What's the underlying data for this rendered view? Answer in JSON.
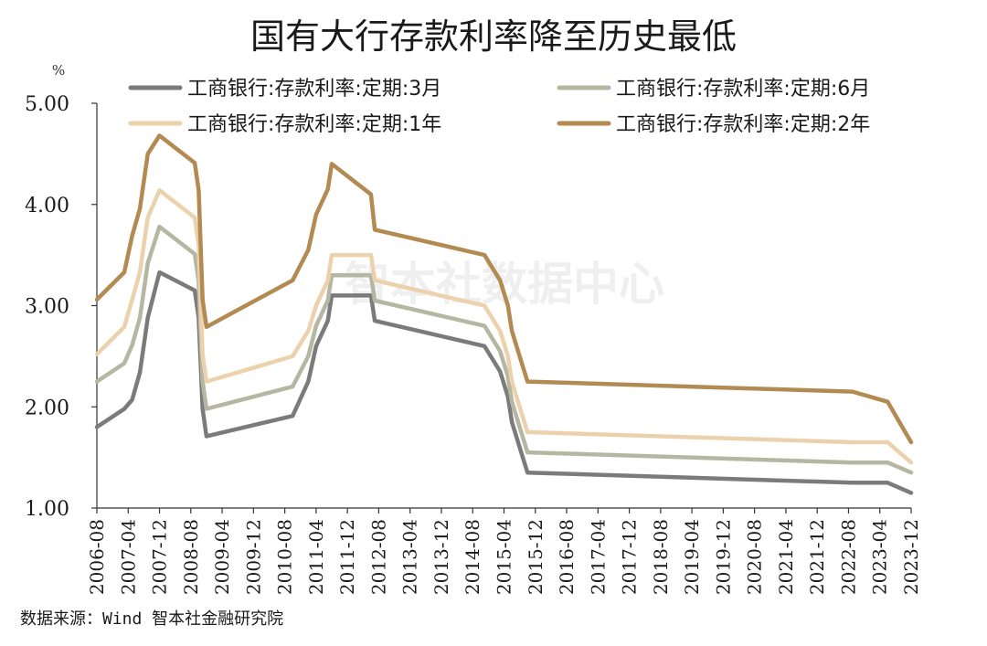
{
  "title": "国有大行存款利率降至历史最低",
  "unit_label": "%",
  "watermark": "智本社数据中心",
  "source": "数据来源：Wind 智本社金融研究院",
  "chart_data": {
    "type": "line",
    "title": "国有大行存款利率降至历史最低",
    "ylabel": "%",
    "ylim": [
      1.0,
      5.0
    ],
    "yticks": [
      "1.00",
      "2.00",
      "3.00",
      "4.00",
      "5.00"
    ],
    "xlim": [
      "2006-08",
      "2023-12"
    ],
    "xticks": [
      "2006-08",
      "2007-04",
      "2007-12",
      "2008-08",
      "2009-04",
      "2009-12",
      "2010-08",
      "2011-04",
      "2011-12",
      "2012-08",
      "2013-04",
      "2013-12",
      "2014-08",
      "2015-04",
      "2015-12",
      "2016-08",
      "2017-04",
      "2017-12",
      "2018-08",
      "2019-04",
      "2019-12",
      "2020-08",
      "2021-04",
      "2021-12",
      "2022-08",
      "2023-04",
      "2023-12"
    ],
    "legend_position": "top",
    "grid": false,
    "series": [
      {
        "name": "工商银行:存款利率:定期:3月",
        "color": "#7b7b7b",
        "points": [
          [
            "2006-08",
            1.8
          ],
          [
            "2007-03",
            1.98
          ],
          [
            "2007-05",
            2.07
          ],
          [
            "2007-07",
            2.34
          ],
          [
            "2007-08",
            2.61
          ],
          [
            "2007-09",
            2.88
          ],
          [
            "2007-12",
            3.33
          ],
          [
            "2008-09",
            3.15
          ],
          [
            "2008-10",
            2.88
          ],
          [
            "2008-11",
            1.98
          ],
          [
            "2008-12",
            1.71
          ],
          [
            "2010-10",
            1.91
          ],
          [
            "2011-02",
            2.25
          ],
          [
            "2011-04",
            2.6
          ],
          [
            "2011-07",
            2.85
          ],
          [
            "2011-08",
            3.1
          ],
          [
            "2012-06",
            3.1
          ],
          [
            "2012-07",
            2.85
          ],
          [
            "2014-11",
            2.6
          ],
          [
            "2015-03",
            2.35
          ],
          [
            "2015-05",
            2.1
          ],
          [
            "2015-06",
            1.85
          ],
          [
            "2015-08",
            1.6
          ],
          [
            "2015-10",
            1.35
          ],
          [
            "2022-09",
            1.25
          ],
          [
            "2023-06",
            1.25
          ],
          [
            "2023-12",
            1.15
          ]
        ]
      },
      {
        "name": "工商银行:存款利率:定期:6月",
        "color": "#b5b7a2",
        "points": [
          [
            "2006-08",
            2.25
          ],
          [
            "2007-03",
            2.43
          ],
          [
            "2007-05",
            2.61
          ],
          [
            "2007-07",
            2.88
          ],
          [
            "2007-08",
            3.15
          ],
          [
            "2007-09",
            3.42
          ],
          [
            "2007-12",
            3.78
          ],
          [
            "2008-09",
            3.51
          ],
          [
            "2008-10",
            3.24
          ],
          [
            "2008-11",
            2.25
          ],
          [
            "2008-12",
            1.98
          ],
          [
            "2010-10",
            2.2
          ],
          [
            "2011-02",
            2.5
          ],
          [
            "2011-04",
            2.8
          ],
          [
            "2011-07",
            3.05
          ],
          [
            "2011-08",
            3.3
          ],
          [
            "2012-06",
            3.3
          ],
          [
            "2012-07",
            3.05
          ],
          [
            "2014-11",
            2.8
          ],
          [
            "2015-03",
            2.55
          ],
          [
            "2015-05",
            2.3
          ],
          [
            "2015-06",
            2.05
          ],
          [
            "2015-08",
            1.8
          ],
          [
            "2015-10",
            1.55
          ],
          [
            "2022-09",
            1.45
          ],
          [
            "2023-06",
            1.45
          ],
          [
            "2023-12",
            1.35
          ]
        ]
      },
      {
        "name": "工商银行:存款利率:定期:1年",
        "color": "#ecd2ac",
        "points": [
          [
            "2006-08",
            2.52
          ],
          [
            "2007-03",
            2.79
          ],
          [
            "2007-05",
            3.06
          ],
          [
            "2007-07",
            3.33
          ],
          [
            "2007-08",
            3.6
          ],
          [
            "2007-09",
            3.87
          ],
          [
            "2007-12",
            4.14
          ],
          [
            "2008-09",
            3.87
          ],
          [
            "2008-10",
            3.6
          ],
          [
            "2008-11",
            2.52
          ],
          [
            "2008-12",
            2.25
          ],
          [
            "2010-10",
            2.5
          ],
          [
            "2011-02",
            2.75
          ],
          [
            "2011-04",
            3.0
          ],
          [
            "2011-07",
            3.25
          ],
          [
            "2011-08",
            3.5
          ],
          [
            "2012-06",
            3.5
          ],
          [
            "2012-07",
            3.25
          ],
          [
            "2014-11",
            3.0
          ],
          [
            "2015-03",
            2.75
          ],
          [
            "2015-05",
            2.5
          ],
          [
            "2015-06",
            2.25
          ],
          [
            "2015-08",
            2.0
          ],
          [
            "2015-10",
            1.75
          ],
          [
            "2022-09",
            1.65
          ],
          [
            "2023-06",
            1.65
          ],
          [
            "2023-09",
            1.55
          ],
          [
            "2023-12",
            1.45
          ]
        ]
      },
      {
        "name": "工商银行:存款利率:定期:2年",
        "color": "#b38a51",
        "points": [
          [
            "2006-08",
            3.06
          ],
          [
            "2007-03",
            3.33
          ],
          [
            "2007-05",
            3.69
          ],
          [
            "2007-07",
            3.96
          ],
          [
            "2007-08",
            4.23
          ],
          [
            "2007-09",
            4.5
          ],
          [
            "2007-12",
            4.68
          ],
          [
            "2008-09",
            4.41
          ],
          [
            "2008-10",
            4.14
          ],
          [
            "2008-11",
            3.06
          ],
          [
            "2008-12",
            2.79
          ],
          [
            "2010-10",
            3.25
          ],
          [
            "2011-02",
            3.55
          ],
          [
            "2011-04",
            3.9
          ],
          [
            "2011-07",
            4.15
          ],
          [
            "2011-08",
            4.4
          ],
          [
            "2012-06",
            4.1
          ],
          [
            "2012-07",
            3.75
          ],
          [
            "2014-11",
            3.5
          ],
          [
            "2015-03",
            3.25
          ],
          [
            "2015-05",
            3.0
          ],
          [
            "2015-06",
            2.75
          ],
          [
            "2015-08",
            2.5
          ],
          [
            "2015-10",
            2.25
          ],
          [
            "2022-09",
            2.15
          ],
          [
            "2023-06",
            2.05
          ],
          [
            "2023-09",
            1.85
          ],
          [
            "2023-12",
            1.65
          ]
        ]
      }
    ]
  }
}
